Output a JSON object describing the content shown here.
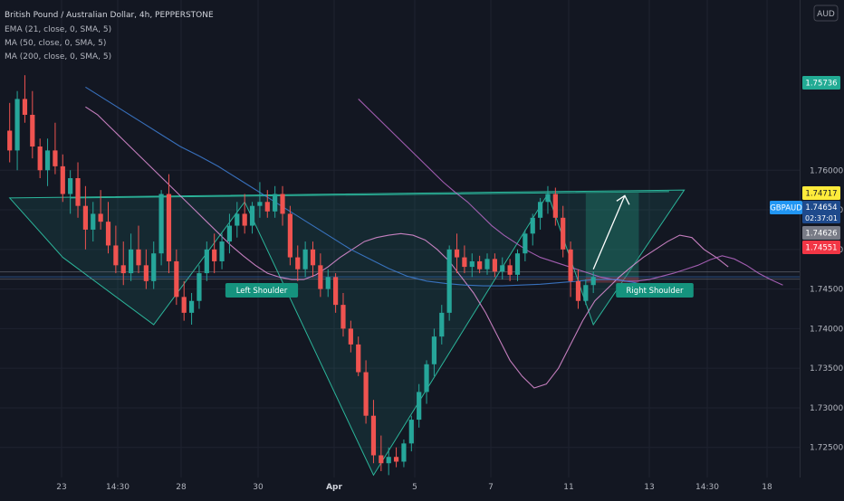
{
  "header": {
    "title": "British Pound / Australian Dollar, 4h, PEPPERSTONE",
    "currency_badge": "AUD"
  },
  "indicators": [
    "EMA (21, close, 0, SMA, 5)",
    "MA (50, close, 0, SMA, 5)",
    "MA (200, close, 0, SMA, 5)"
  ],
  "annotations": {
    "left_shoulder": "Left Shoulder",
    "right_shoulder": "Right Shoulder"
  },
  "price_tags": {
    "symbol": "GBPAUD",
    "current_price": "1.74654",
    "countdown": "02:37:01",
    "target": "1.75736",
    "yellow": "1.74717",
    "gray": "1.74626",
    "red": "1.74551"
  },
  "colors": {
    "background": "#131722",
    "up": "#26a69a",
    "down": "#ef5350",
    "ema21": "#e38fd8",
    "ma50": "#ba68c8",
    "ma200": "#3e7fd6",
    "pattern_fill": "#26a69a",
    "target_tag": "#22ab94",
    "yellow_tag": "#ffeb3b",
    "gray_tag": "#787b86",
    "red_tag": "#f23645"
  },
  "chart_data": {
    "type": "candlestick",
    "title": "British Pound / Australian Dollar, 4h, PEPPERSTONE",
    "ylim": [
      1.7212,
      1.7815
    ],
    "y_ticks": [
      "1.76000",
      "1.75500",
      "1.75000",
      "1.74500",
      "1.74000",
      "1.73500",
      "1.73000",
      "1.72500"
    ],
    "x_ticks": [
      "23",
      "14:30",
      "28",
      "30",
      "Apr",
      "5",
      "7",
      "11",
      "13",
      "14:30",
      "18"
    ],
    "candles_ohlc": [
      [
        1.765,
        1.7685,
        1.761,
        1.7625
      ],
      [
        1.7625,
        1.77,
        1.76,
        1.769
      ],
      [
        1.769,
        1.772,
        1.766,
        1.767
      ],
      [
        1.767,
        1.77,
        1.7615,
        1.763
      ],
      [
        1.763,
        1.764,
        1.759,
        1.76
      ],
      [
        1.76,
        1.764,
        1.758,
        1.7625
      ],
      [
        1.7625,
        1.766,
        1.7595,
        1.7605
      ],
      [
        1.7605,
        1.762,
        1.756,
        1.757
      ],
      [
        1.757,
        1.76,
        1.7545,
        1.759
      ],
      [
        1.759,
        1.761,
        1.754,
        1.7555
      ],
      [
        1.7555,
        1.758,
        1.75,
        1.7525
      ],
      [
        1.7525,
        1.756,
        1.751,
        1.7545
      ],
      [
        1.7545,
        1.7575,
        1.7525,
        1.7535
      ],
      [
        1.7535,
        1.756,
        1.7495,
        1.7505
      ],
      [
        1.7505,
        1.753,
        1.747,
        1.748
      ],
      [
        1.748,
        1.751,
        1.7455,
        1.747
      ],
      [
        1.747,
        1.752,
        1.746,
        1.75
      ],
      [
        1.75,
        1.753,
        1.747,
        1.748
      ],
      [
        1.748,
        1.75,
        1.745,
        1.746
      ],
      [
        1.746,
        1.751,
        1.745,
        1.7495
      ],
      [
        1.7495,
        1.7575,
        1.748,
        1.757
      ],
      [
        1.757,
        1.7595,
        1.747,
        1.7485
      ],
      [
        1.7485,
        1.75,
        1.743,
        1.744
      ],
      [
        1.744,
        1.746,
        1.741,
        1.742
      ],
      [
        1.742,
        1.7445,
        1.7405,
        1.7435
      ],
      [
        1.7435,
        1.748,
        1.7425,
        1.747
      ],
      [
        1.747,
        1.751,
        1.746,
        1.75
      ],
      [
        1.75,
        1.752,
        1.747,
        1.7485
      ],
      [
        1.7485,
        1.752,
        1.7475,
        1.751
      ],
      [
        1.751,
        1.7545,
        1.7495,
        1.753
      ],
      [
        1.753,
        1.756,
        1.7515,
        1.7545
      ],
      [
        1.7545,
        1.757,
        1.752,
        1.753
      ],
      [
        1.753,
        1.756,
        1.752,
        1.7555
      ],
      [
        1.7555,
        1.7585,
        1.754,
        1.756
      ],
      [
        1.756,
        1.7575,
        1.754,
        1.7548
      ],
      [
        1.7548,
        1.758,
        1.754,
        1.757
      ],
      [
        1.757,
        1.758,
        1.753,
        1.7545
      ],
      [
        1.7545,
        1.7555,
        1.748,
        1.749
      ],
      [
        1.749,
        1.7505,
        1.746,
        1.7475
      ],
      [
        1.7475,
        1.751,
        1.7465,
        1.75
      ],
      [
        1.75,
        1.751,
        1.7465,
        1.748
      ],
      [
        1.748,
        1.7495,
        1.744,
        1.745
      ],
      [
        1.745,
        1.7475,
        1.744,
        1.7465
      ],
      [
        1.7465,
        1.747,
        1.742,
        1.743
      ],
      [
        1.743,
        1.7445,
        1.739,
        1.74
      ],
      [
        1.74,
        1.741,
        1.737,
        1.738
      ],
      [
        1.738,
        1.739,
        1.734,
        1.7345
      ],
      [
        1.7345,
        1.736,
        1.728,
        1.729
      ],
      [
        1.729,
        1.731,
        1.723,
        1.724
      ],
      [
        1.724,
        1.7265,
        1.722,
        1.723
      ],
      [
        1.723,
        1.725,
        1.7215,
        1.7238
      ],
      [
        1.7238,
        1.725,
        1.7225,
        1.7232
      ],
      [
        1.7232,
        1.726,
        1.7225,
        1.7255
      ],
      [
        1.7255,
        1.729,
        1.7245,
        1.7285
      ],
      [
        1.7285,
        1.733,
        1.7275,
        1.732
      ],
      [
        1.732,
        1.736,
        1.7305,
        1.7355
      ],
      [
        1.7355,
        1.74,
        1.734,
        1.739
      ],
      [
        1.739,
        1.743,
        1.738,
        1.742
      ],
      [
        1.742,
        1.7505,
        1.741,
        1.75
      ],
      [
        1.75,
        1.752,
        1.747,
        1.749
      ],
      [
        1.749,
        1.7505,
        1.747,
        1.7478
      ],
      [
        1.7478,
        1.7495,
        1.7465,
        1.7485
      ],
      [
        1.7485,
        1.7492,
        1.747,
        1.7475
      ],
      [
        1.7475,
        1.7495,
        1.7468,
        1.7488
      ],
      [
        1.7488,
        1.7495,
        1.7465,
        1.7472
      ],
      [
        1.7472,
        1.749,
        1.7462,
        1.748
      ],
      [
        1.748,
        1.7488,
        1.746,
        1.7468
      ],
      [
        1.7468,
        1.75,
        1.746,
        1.7495
      ],
      [
        1.7495,
        1.7525,
        1.7485,
        1.752
      ],
      [
        1.752,
        1.7545,
        1.7505,
        1.754
      ],
      [
        1.754,
        1.7565,
        1.7525,
        1.756
      ],
      [
        1.756,
        1.758,
        1.7545,
        1.757
      ],
      [
        1.757,
        1.7578,
        1.753,
        1.754
      ],
      [
        1.754,
        1.7555,
        1.749,
        1.75
      ],
      [
        1.75,
        1.751,
        1.744,
        1.746
      ],
      [
        1.746,
        1.7475,
        1.7425,
        1.7435
      ],
      [
        1.7435,
        1.7462,
        1.743,
        1.7455
      ],
      [
        1.7455,
        1.7472,
        1.7445,
        1.7465
      ]
    ],
    "pattern_points": [
      [
        0,
        1.7565
      ],
      [
        7,
        1.749
      ],
      [
        19,
        1.7405
      ],
      [
        31,
        1.756
      ],
      [
        48,
        1.7215
      ],
      [
        71,
        1.757
      ],
      [
        77,
        1.7405
      ],
      [
        89,
        1.7575
      ]
    ],
    "pattern_neckline": [
      [
        8,
        1.7565
      ],
      [
        87,
        1.7573
      ]
    ],
    "target_arrow": [
      [
        77,
        1.7475
      ],
      [
        79,
        1.7568
      ]
    ],
    "target_box": [
      [
        76,
        1.7573
      ],
      [
        83,
        1.7458
      ]
    ],
    "series": [
      {
        "name": "EMA (21, close, 0, SMA, 5)",
        "values": [
          1.768,
          1.767,
          1.7655,
          1.764,
          1.7625,
          1.761,
          1.7595,
          1.758,
          1.7565,
          1.755,
          1.7535,
          1.752,
          1.7505,
          1.7492,
          1.748,
          1.747,
          1.7465,
          1.7462,
          1.7462,
          1.7468,
          1.7478,
          1.749,
          1.75,
          1.751,
          1.7515,
          1.7518,
          1.752,
          1.7518,
          1.7512,
          1.75,
          1.7485,
          1.7465,
          1.7445,
          1.742,
          1.739,
          1.736,
          1.734,
          1.7325,
          1.733,
          1.735,
          1.738,
          1.741,
          1.7435,
          1.745,
          1.7465,
          1.7478,
          1.749,
          1.75,
          1.751,
          1.7518,
          1.7515,
          1.75,
          1.749,
          1.7478
        ]
      },
      {
        "name": "MA (50, close, 0, SMA, 5)",
        "values": [
          1.769,
          1.7675,
          1.766,
          1.7645,
          1.763,
          1.7615,
          1.76,
          1.7585,
          1.7572,
          1.756,
          1.7545,
          1.753,
          1.7518,
          1.7508,
          1.7498,
          1.749,
          1.7485,
          1.748,
          1.7475,
          1.747,
          1.7465,
          1.7462,
          1.746,
          1.746,
          1.7462,
          1.7466,
          1.747,
          1.7475,
          1.748,
          1.7487,
          1.7492,
          1.7488,
          1.748,
          1.747,
          1.7462,
          1.7455
        ]
      },
      {
        "name": "MA (200, close, 0, SMA, 5)",
        "values": [
          1.7705,
          1.769,
          1.7675,
          1.766,
          1.7645,
          1.763,
          1.7618,
          1.7605,
          1.759,
          1.7575,
          1.756,
          1.7545,
          1.753,
          1.7515,
          1.75,
          1.7488,
          1.7476,
          1.7466,
          1.746,
          1.7457,
          1.7455,
          1.7454,
          1.7454,
          1.7455,
          1.7456,
          1.7458,
          1.746,
          1.7462,
          1.7462,
          1.7458,
          1.745,
          1.7445
        ]
      }
    ]
  }
}
